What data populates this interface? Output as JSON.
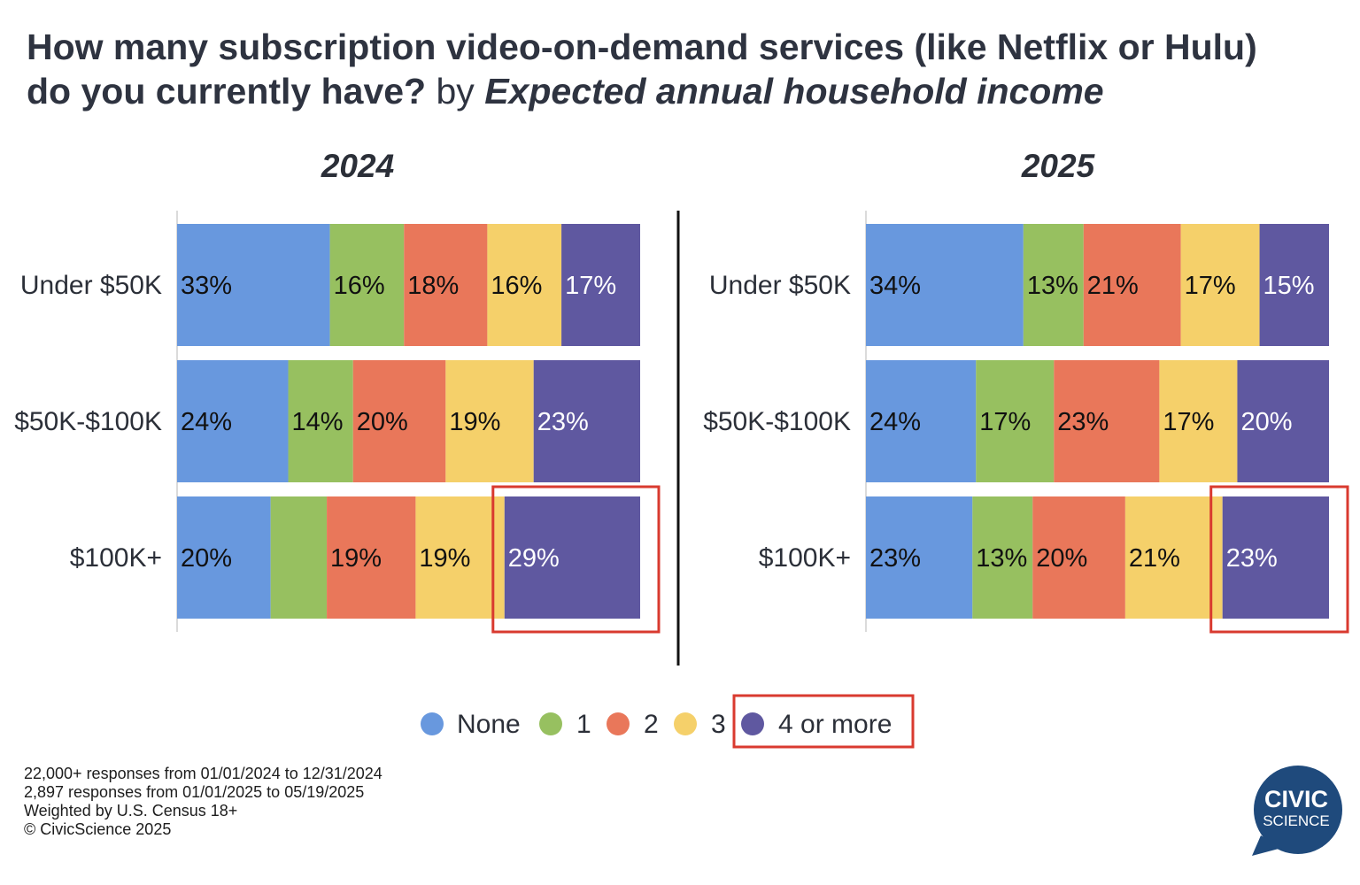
{
  "title": {
    "line1": "How many subscription video-on-demand services (like Netflix or Hulu)",
    "line2_main": "do you currently have?",
    "line2_by": " by ",
    "line2_group": "Expected annual household income"
  },
  "chart_data": [
    {
      "type": "bar",
      "orientation": "horizontal-stacked-100",
      "title": "2024",
      "categories": [
        "Under $50K",
        "$50K-$100K",
        "$100K+"
      ],
      "series": [
        {
          "name": "None",
          "values": [
            33,
            24,
            20
          ],
          "labels": [
            "33%",
            "24%",
            "20%"
          ]
        },
        {
          "name": "1",
          "values": [
            16,
            14,
            12
          ],
          "labels": [
            "16%",
            "14%",
            ""
          ]
        },
        {
          "name": "2",
          "values": [
            18,
            20,
            19
          ],
          "labels": [
            "18%",
            "20%",
            "19%"
          ]
        },
        {
          "name": "3",
          "values": [
            16,
            19,
            19
          ],
          "labels": [
            "16%",
            "19%",
            "19%"
          ]
        },
        {
          "name": "4 or more",
          "values": [
            17,
            23,
            29
          ],
          "labels": [
            "17%",
            "23%",
            "29%"
          ]
        }
      ],
      "highlight": {
        "category": "$100K+",
        "series": "4 or more",
        "color": "#d93a2f"
      }
    },
    {
      "type": "bar",
      "orientation": "horizontal-stacked-100",
      "title": "2025",
      "categories": [
        "Under $50K",
        "$50K-$100K",
        "$100K+"
      ],
      "series": [
        {
          "name": "None",
          "values": [
            34,
            24,
            23
          ],
          "labels": [
            "34%",
            "24%",
            "23%"
          ]
        },
        {
          "name": "1",
          "values": [
            13,
            17,
            13
          ],
          "labels": [
            "13%",
            "17%",
            "13%"
          ]
        },
        {
          "name": "2",
          "values": [
            21,
            23,
            20
          ],
          "labels": [
            "21%",
            "23%",
            "20%"
          ]
        },
        {
          "name": "3",
          "values": [
            17,
            17,
            21
          ],
          "labels": [
            "17%",
            "17%",
            "21%"
          ]
        },
        {
          "name": "4 or more",
          "values": [
            15,
            20,
            23
          ],
          "labels": [
            "15%",
            "20%",
            "23%"
          ]
        }
      ],
      "highlight": {
        "category": "$100K+",
        "series": "4 or more",
        "color": "#d93a2f"
      }
    }
  ],
  "colors": {
    "None": "#6898de",
    "1": "#97c060",
    "2": "#e9775a",
    "3": "#f5d06a",
    "4 or more": "#5f58a0"
  },
  "label_colors": {
    "None": "#111111",
    "1": "#111111",
    "2": "#111111",
    "3": "#111111",
    "4 or more": "#ffffff"
  },
  "legend": {
    "items": [
      "None",
      "1",
      "2",
      "3",
      "4 or more"
    ],
    "placement": "bottom-center",
    "highlight_item": "4 or more"
  },
  "footnotes": [
    "22,000+ responses from 01/01/2024 to 12/31/2024",
    "2,897 responses from 01/01/2025 to 05/19/2025",
    "Weighted by U.S. Census 18+",
    "© CivicScience 2025"
  ],
  "logo": {
    "line1": "CIVIC",
    "line2": "SCIENCE",
    "color": "#1f4a7c"
  }
}
